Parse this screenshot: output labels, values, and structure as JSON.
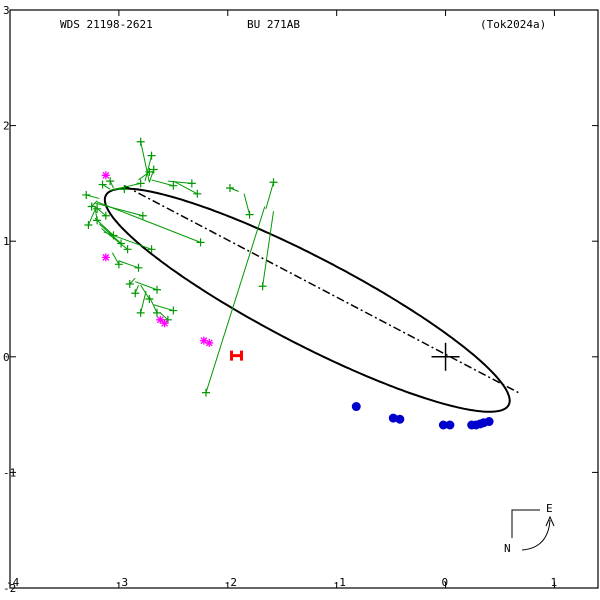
{
  "chart_data": {
    "type": "scatter",
    "header": {
      "left": "WDS 21198-2621",
      "center": "BU  271AB",
      "right": "(Tok2024a)"
    },
    "xlim": [
      -4,
      1.4
    ],
    "ylim": [
      -2.0,
      3.0
    ],
    "x_ticks": [
      {
        "v": -4,
        "label": "-4"
      },
      {
        "v": -3,
        "label": "-3"
      },
      {
        "v": -2,
        "label": "-2"
      },
      {
        "v": -1,
        "label": "-1"
      },
      {
        "v": 0,
        "label": "0"
      },
      {
        "v": 1,
        "label": "1"
      }
    ],
    "y_ticks": [
      {
        "v": 3,
        "label": "3"
      },
      {
        "v": 2,
        "label": "2"
      },
      {
        "v": 1,
        "label": "1"
      },
      {
        "v": 0,
        "label": "0"
      },
      {
        "v": -1,
        "label": "-1"
      },
      {
        "v": -2,
        "label": "-2"
      }
    ],
    "orbit": {
      "center": [
        -1.27,
        0.49
      ],
      "semi_major": 2.06,
      "semi_minor": 0.38,
      "angle_deg": -26.0,
      "color": "#000000"
    },
    "primary": [
      0.0,
      0.0
    ],
    "line_of_nodes": {
      "from": [
        -2.95,
        1.48
      ],
      "to": [
        0.67,
        -0.31
      ]
    },
    "colors": {
      "frame": "#000000",
      "micrometric": "#009900",
      "speckle": "#0000cc",
      "interferometric": "#ff00ff",
      "recent": "#ff0000"
    },
    "micrometric_obs": [
      {
        "obs": [
          -2.8,
          1.86
        ],
        "fit": [
          -2.72,
          1.51
        ]
      },
      {
        "obs": [
          -2.7,
          1.74
        ],
        "fit": [
          -2.76,
          1.52
        ]
      },
      {
        "obs": [
          -2.68,
          1.62
        ],
        "fit": [
          -2.72,
          1.51
        ]
      },
      {
        "obs": [
          -2.72,
          1.6
        ],
        "fit": [
          -2.82,
          1.53
        ]
      },
      {
        "obs": [
          -2.5,
          1.48
        ],
        "fit": [
          -2.7,
          1.53
        ]
      },
      {
        "obs": [
          -2.33,
          1.5
        ],
        "fit": [
          -2.55,
          1.52
        ]
      },
      {
        "obs": [
          -2.28,
          1.41
        ],
        "fit": [
          -2.5,
          1.52
        ]
      },
      {
        "obs": [
          -1.98,
          1.46
        ],
        "fit": [
          -1.9,
          1.43
        ]
      },
      {
        "obs": [
          -1.8,
          1.23
        ],
        "fit": [
          -1.85,
          1.41
        ]
      },
      {
        "obs": [
          -1.58,
          1.51
        ],
        "fit": [
          -1.65,
          1.28
        ]
      },
      {
        "obs": [
          -1.68,
          0.61
        ],
        "fit": [
          -1.58,
          1.26
        ]
      },
      {
        "obs": [
          -2.2,
          -0.31
        ],
        "fit": [
          -1.66,
          1.3
        ]
      },
      {
        "obs": [
          -3.15,
          1.49
        ],
        "fit": [
          -3.08,
          1.45
        ]
      },
      {
        "obs": [
          -3.08,
          1.52
        ],
        "fit": [
          -3.05,
          1.46
        ]
      },
      {
        "obs": [
          -2.95,
          1.45
        ],
        "fit": [
          -3.05,
          1.45
        ]
      },
      {
        "obs": [
          -3.3,
          1.4
        ],
        "fit": [
          -3.18,
          1.37
        ]
      },
      {
        "obs": [
          -3.25,
          1.3
        ],
        "fit": [
          -3.2,
          1.35
        ]
      },
      {
        "obs": [
          -3.2,
          1.28
        ],
        "fit": [
          -3.2,
          1.33
        ]
      },
      {
        "obs": [
          -2.8,
          1.5
        ],
        "fit": [
          -3.08,
          1.44
        ]
      },
      {
        "obs": [
          -3.28,
          1.14
        ],
        "fit": [
          -3.22,
          1.27
        ]
      },
      {
        "obs": [
          -3.2,
          1.18
        ],
        "fit": [
          -3.22,
          1.3
        ]
      },
      {
        "obs": [
          -3.12,
          1.22
        ],
        "fit": [
          -3.22,
          1.3
        ]
      },
      {
        "obs": [
          -2.78,
          1.22
        ],
        "fit": [
          -3.22,
          1.33
        ]
      },
      {
        "obs": [
          -2.25,
          0.99
        ],
        "fit": [
          -3.2,
          1.34
        ]
      },
      {
        "obs": [
          -3.05,
          1.05
        ],
        "fit": [
          -3.22,
          1.2
        ]
      },
      {
        "obs": [
          -2.98,
          0.98
        ],
        "fit": [
          -3.18,
          1.15
        ]
      },
      {
        "obs": [
          -2.92,
          0.93
        ],
        "fit": [
          -3.16,
          1.11
        ]
      },
      {
        "obs": [
          -2.7,
          0.93
        ],
        "fit": [
          -3.14,
          1.08
        ]
      },
      {
        "obs": [
          -3.0,
          0.8
        ],
        "fit": [
          -3.06,
          0.9
        ]
      },
      {
        "obs": [
          -2.82,
          0.77
        ],
        "fit": [
          -3.0,
          0.83
        ]
      },
      {
        "obs": [
          -2.9,
          0.63
        ],
        "fit": [
          -2.85,
          0.68
        ]
      },
      {
        "obs": [
          -2.65,
          0.58
        ],
        "fit": [
          -2.85,
          0.65
        ]
      },
      {
        "obs": [
          -2.72,
          0.5
        ],
        "fit": [
          -2.8,
          0.62
        ]
      },
      {
        "obs": [
          -2.85,
          0.55
        ],
        "fit": [
          -2.82,
          0.62
        ]
      },
      {
        "obs": [
          -2.8,
          0.38
        ],
        "fit": [
          -2.75,
          0.57
        ]
      },
      {
        "obs": [
          -2.65,
          0.38
        ],
        "fit": [
          -2.72,
          0.52
        ]
      },
      {
        "obs": [
          -2.5,
          0.4
        ],
        "fit": [
          -2.68,
          0.45
        ]
      },
      {
        "obs": [
          -2.55,
          0.32
        ],
        "fit": [
          -2.62,
          0.38
        ]
      }
    ],
    "interferometric_obs": [
      [
        -3.12,
        1.57
      ],
      [
        -3.12,
        0.86
      ],
      [
        -2.62,
        0.32
      ],
      [
        -2.58,
        0.29
      ],
      [
        -2.22,
        0.14
      ],
      [
        -2.17,
        0.12
      ]
    ],
    "speckle_obs": [
      [
        -0.82,
        -0.43
      ],
      [
        -0.48,
        -0.53
      ],
      [
        -0.42,
        -0.54
      ],
      [
        -0.02,
        -0.59
      ],
      [
        0.04,
        -0.59
      ],
      [
        0.24,
        -0.59
      ],
      [
        0.28,
        -0.59
      ],
      [
        0.32,
        -0.58
      ],
      [
        0.35,
        -0.57
      ],
      [
        0.4,
        -0.56
      ]
    ],
    "recent_obs": [
      [
        -1.92,
        0.01
      ]
    ],
    "compass": {
      "e": "E",
      "n": "N"
    }
  }
}
